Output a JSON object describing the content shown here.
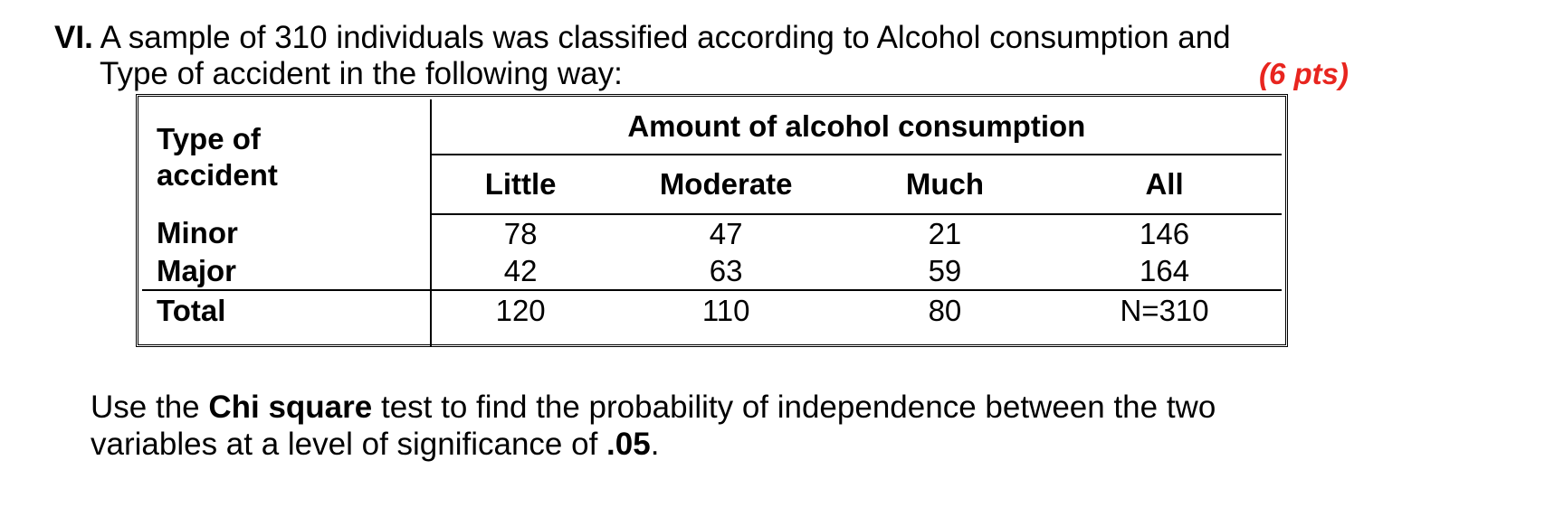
{
  "question": {
    "number": "VI.",
    "line1": " A sample of 310 individuals was classified according to Alcohol consumption and",
    "line2": "Type of accident in the following way:",
    "points": "(6 pts)"
  },
  "table": {
    "row_header_line1": "Type of",
    "row_header_line2": "accident",
    "group_header": "Amount of alcohol consumption",
    "columns": [
      "Little",
      "Moderate",
      "Much",
      "All"
    ],
    "rows": [
      {
        "label": "Minor",
        "values": [
          "78",
          "47",
          "21",
          "146"
        ]
      },
      {
        "label": "Major",
        "values": [
          "42",
          "63",
          "59",
          "164"
        ]
      },
      {
        "label": "Total",
        "values": [
          "120",
          "110",
          "80",
          "N=310"
        ]
      }
    ]
  },
  "instruction": {
    "part1": "Use the ",
    "bold1": "Chi square",
    "part2": " test to find the probability of independence between the two",
    "part3": "variables at a level of significance of ",
    "bold2": ".05",
    "part4": "."
  }
}
